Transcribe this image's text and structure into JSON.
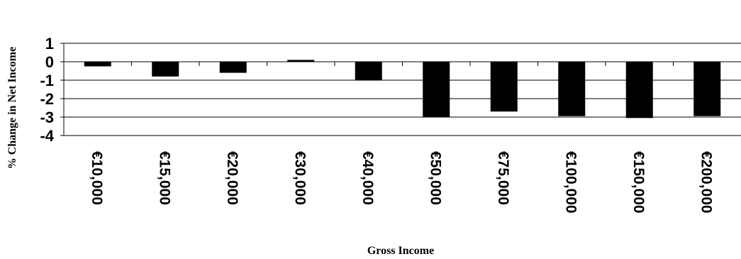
{
  "chart_data": {
    "type": "bar",
    "categories": [
      "€10,000",
      "€15,000",
      "€20,000",
      "€30,000",
      "€40,000",
      "€50,000",
      "€75,000",
      "€100,000",
      "€150,000",
      "€200,000"
    ],
    "values": [
      -0.25,
      -0.8,
      -0.6,
      0.1,
      -1.0,
      -3.0,
      -2.7,
      -2.95,
      -3.05,
      -2.95
    ],
    "title": "",
    "xlabel": "Gross Income",
    "ylabel": "% Change in Net Income",
    "ylim": [
      -4,
      1
    ],
    "yticks": [
      "1",
      "0",
      "-1",
      "-2",
      "-3",
      "-4"
    ],
    "grid": true,
    "bar_color": "#000000"
  }
}
